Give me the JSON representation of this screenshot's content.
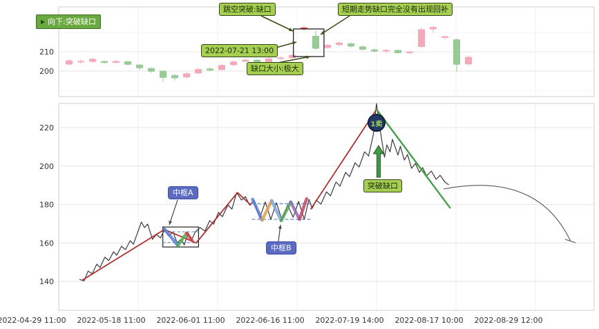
{
  "top_panel": {
    "yticks": [
      "210",
      "200"
    ],
    "annotations": {
      "direction_tag": "向下:突破缺口",
      "gap_breakout": "跳空突破:缺口",
      "gap_not_filled": "短期走势缺口完全没有出现回补",
      "gap_datetime": "2022-07-21 13:00",
      "gap_size": "缺口大小:极大"
    }
  },
  "bottom_panel": {
    "yticks": [
      "220",
      "200",
      "180",
      "160",
      "140"
    ],
    "annotations": {
      "pivot_a": "中枢A",
      "pivot_b": "中枢B",
      "breakout_gap": "突破缺口",
      "sell_signal": "1卖"
    }
  },
  "colors": {
    "candle_up": "#f4a9ba",
    "candle_down": "#96cb96",
    "candle_highlight": "#e53935",
    "segment_up": "#b03030",
    "segment_down": "#44a048",
    "note_green": "#a6cf52",
    "pivot_blue": "#5c6bc0",
    "badge_navy": "#223a63"
  },
  "chart_data": [
    {
      "type": "candlestick",
      "panel": "top",
      "yticks": [
        210,
        200
      ],
      "ylim": [
        192,
        226
      ],
      "up_color": "#f4a9ba",
      "down_color": "#96cb96",
      "candles": [
        [
          203.4,
          206.2,
          202.8,
          205.5,
          1
        ],
        [
          204.5,
          206.0,
          203.7,
          205.2,
          1
        ],
        [
          204.8,
          207.0,
          204.3,
          206.3,
          1
        ],
        [
          205.1,
          205.6,
          203.7,
          204.3,
          0
        ],
        [
          204.3,
          205.8,
          203.8,
          205.2,
          1
        ],
        [
          205.0,
          205.4,
          202.8,
          203.3,
          0
        ],
        [
          203.3,
          203.7,
          200.8,
          201.5,
          0
        ],
        [
          201.5,
          201.9,
          199.0,
          199.7,
          0
        ],
        [
          200.1,
          200.3,
          194.4,
          196.5,
          0
        ],
        [
          197.9,
          198.5,
          195.1,
          196.3,
          0
        ],
        [
          196.7,
          199.4,
          196.1,
          198.8,
          1
        ],
        [
          198.8,
          201.7,
          198.3,
          201.0,
          1
        ],
        [
          201.3,
          201.9,
          199.7,
          200.3,
          0
        ],
        [
          200.6,
          203.8,
          200.1,
          203.1,
          1
        ],
        [
          203.1,
          205.6,
          202.6,
          204.9,
          1
        ],
        [
          204.9,
          206.5,
          204.4,
          205.8,
          1
        ],
        [
          205.8,
          206.2,
          204.2,
          204.7,
          0
        ],
        [
          204.7,
          207.1,
          204.3,
          206.5,
          1
        ],
        [
          206.3,
          207.6,
          205.8,
          207.0,
          1
        ],
        [
          206.7,
          208.8,
          205.3,
          208.3,
          1
        ],
        [
          221.8,
          223.0,
          221.2,
          222.5,
          1,
          "#e53935"
        ],
        [
          218.2,
          221.0,
          210.9,
          211.6,
          0
        ],
        [
          212.0,
          214.2,
          211.4,
          213.5,
          1
        ],
        [
          213.5,
          215.4,
          212.9,
          214.7,
          1
        ],
        [
          214.3,
          214.9,
          212.1,
          212.7,
          0
        ],
        [
          212.7,
          213.2,
          210.5,
          211.1,
          0
        ],
        [
          211.1,
          211.7,
          209.6,
          210.2,
          0
        ],
        [
          210.2,
          211.3,
          209.2,
          210.9,
          1
        ],
        [
          210.9,
          211.1,
          208.8,
          209.3,
          0
        ],
        [
          209.3,
          210.5,
          208.6,
          210.0,
          1
        ],
        [
          212.5,
          222.6,
          212.0,
          221.6,
          1
        ],
        [
          221.6,
          223.4,
          219.8,
          222.8,
          1
        ],
        [
          217.2,
          218.4,
          216.5,
          218.0,
          1
        ],
        [
          216.4,
          216.9,
          199.4,
          203.3,
          0
        ],
        [
          203.5,
          208.0,
          202.8,
          207.3,
          1
        ]
      ],
      "gap_box": {
        "from": 19.1,
        "to": 21.7,
        "top": 221.8,
        "bottom": 207.5
      },
      "arrows": [
        [
          [
            378,
            23
          ],
          [
            424,
            45
          ]
        ],
        [
          [
            506,
            23
          ],
          [
            464,
            50
          ]
        ],
        [
          [
            389,
            72
          ],
          [
            429,
            61
          ]
        ],
        [
          [
            402,
            91
          ],
          [
            449,
            82
          ]
        ]
      ]
    },
    {
      "type": "line",
      "panel": "bottom",
      "yticks": [
        220,
        200,
        180,
        160,
        140
      ],
      "ylim": [
        132,
        236
      ],
      "xtick_labels": [
        "2022-04-29 11:00",
        "2022-05-18 11:00",
        "2022-06-01 11:00",
        "2022-06-16 11:00",
        "2022-07-19 14:00",
        "2022-08-17 10:00",
        "2022-08-29 12:00"
      ],
      "price_line": [
        [
          0.26,
          141.0
        ],
        [
          0.32,
          140.3
        ],
        [
          0.37,
          145.4
        ],
        [
          0.42,
          143.9
        ],
        [
          0.48,
          149.0
        ],
        [
          0.52,
          147.2
        ],
        [
          0.58,
          152.6
        ],
        [
          0.63,
          150.8
        ],
        [
          0.69,
          155.4
        ],
        [
          0.73,
          153.6
        ],
        [
          0.79,
          158.3
        ],
        [
          0.84,
          156.5
        ],
        [
          0.9,
          161.2
        ],
        [
          0.94,
          159.4
        ],
        [
          1.0,
          166.2
        ],
        [
          1.04,
          170.9
        ],
        [
          1.08,
          168.0
        ],
        [
          1.12,
          169.8
        ],
        [
          1.18,
          161.9
        ],
        [
          1.23,
          164.4
        ],
        [
          1.28,
          162.6
        ],
        [
          1.33,
          166.9
        ],
        [
          1.38,
          163.7
        ],
        [
          1.44,
          165.5
        ],
        [
          1.49,
          160.1
        ],
        [
          1.54,
          161.9
        ],
        [
          1.58,
          159.0
        ],
        [
          1.63,
          165.1
        ],
        [
          1.67,
          161.5
        ],
        [
          1.72,
          165.8
        ],
        [
          1.78,
          168.0
        ],
        [
          1.84,
          166.2
        ],
        [
          1.9,
          171.6
        ],
        [
          1.95,
          169.8
        ],
        [
          2.01,
          175.9
        ],
        [
          2.06,
          173.7
        ],
        [
          2.13,
          179.8
        ],
        [
          2.18,
          177.6
        ],
        [
          2.24,
          186.2
        ],
        [
          2.3,
          182.3
        ],
        [
          2.35,
          184.1
        ],
        [
          2.4,
          179.8
        ],
        [
          2.46,
          182.0
        ],
        [
          2.53,
          173.0
        ],
        [
          2.6,
          181.3
        ],
        [
          2.67,
          172.3
        ],
        [
          2.74,
          180.9
        ],
        [
          2.81,
          171.9
        ],
        [
          2.88,
          179.8
        ],
        [
          2.95,
          173.4
        ],
        [
          3.02,
          181.6
        ],
        [
          3.09,
          172.3
        ],
        [
          3.15,
          182.7
        ],
        [
          3.19,
          178.0
        ],
        [
          3.24,
          182.3
        ],
        [
          3.3,
          180.2
        ],
        [
          3.37,
          186.6
        ],
        [
          3.42,
          184.5
        ],
        [
          3.49,
          191.7
        ],
        [
          3.54,
          189.5
        ],
        [
          3.61,
          196.7
        ],
        [
          3.66,
          194.5
        ],
        [
          3.73,
          201.7
        ],
        [
          3.78,
          199.5
        ],
        [
          3.85,
          207.4
        ],
        [
          3.9,
          205.2
        ],
        [
          3.96,
          216.4
        ],
        [
          3.98,
          225.4
        ],
        [
          4.0,
          232.5
        ],
        [
          4.03,
          222.6
        ],
        [
          4.06,
          215.0
        ],
        [
          4.1,
          204.6
        ],
        [
          4.13,
          211.0
        ],
        [
          4.17,
          207.4
        ],
        [
          4.2,
          213.9
        ],
        [
          4.24,
          209.2
        ],
        [
          4.27,
          205.7
        ],
        [
          4.3,
          210.3
        ],
        [
          4.35,
          203.1
        ],
        [
          4.39,
          206.0
        ],
        [
          4.44,
          198.8
        ],
        [
          4.49,
          201.4
        ],
        [
          4.54,
          196.7
        ],
        [
          4.58,
          199.2
        ],
        [
          4.63,
          194.9
        ],
        [
          4.69,
          197.4
        ],
        [
          4.75,
          193.1
        ],
        [
          4.8,
          195.2
        ],
        [
          4.86,
          191.7
        ],
        [
          4.91,
          190.2
        ]
      ],
      "up_segments": [
        [
          [
            0.29,
            140.5
          ],
          [
            1.33,
            167.0
          ]
        ],
        [
          [
            1.33,
            167.0
          ],
          [
            1.73,
            160.0
          ]
        ],
        [
          [
            1.73,
            160.0
          ],
          [
            2.25,
            186.2
          ]
        ],
        [
          [
            2.25,
            186.2
          ],
          [
            2.42,
            179.6
          ]
        ],
        [
          [
            3.17,
            177.5
          ],
          [
            4.0,
            229.5
          ]
        ]
      ],
      "down_segment": [
        [
          4.0,
          229.5
        ],
        [
          4.93,
          178.0
        ]
      ],
      "segment_up_color": "#b03030",
      "segment_down_color": "#44a048",
      "strokes": [
        {
          "color": "#5b7fd4",
          "pts": [
            [
              1.33,
              167.3
            ],
            [
              1.5,
              158.7
            ]
          ]
        },
        {
          "color": "#4caf50",
          "pts": [
            [
              1.5,
              158.7
            ],
            [
              1.61,
              165.1
            ]
          ]
        },
        {
          "color": "#d04545",
          "pts": [
            [
              1.61,
              165.1
            ],
            [
              1.68,
              161.2
            ]
          ]
        },
        {
          "color": "#5b7fd4",
          "pts": [
            [
              2.44,
              182.7
            ],
            [
              2.56,
              171.9
            ]
          ]
        },
        {
          "color": "#e2a14f",
          "pts": [
            [
              2.56,
              171.9
            ],
            [
              2.68,
              182.0
            ]
          ]
        },
        {
          "color": "#7da7d9",
          "pts": [
            [
              2.68,
              182.0
            ],
            [
              2.8,
              171.6
            ]
          ]
        },
        {
          "color": "#56a556",
          "pts": [
            [
              2.8,
              171.6
            ],
            [
              2.92,
              181.3
            ]
          ]
        },
        {
          "color": "#8e6bb8",
          "pts": [
            [
              2.92,
              181.3
            ],
            [
              3.03,
              172.3
            ]
          ]
        },
        {
          "color": "#c2456a",
          "pts": [
            [
              3.03,
              172.3
            ],
            [
              3.12,
              183.0
            ]
          ]
        }
      ],
      "pivot_a": {
        "t0": 1.31,
        "t1": 1.76,
        "top": 168.3,
        "bottom": 157.9,
        "dash": [
          165.8,
          160.2
        ]
      },
      "pivot_b": {
        "t0": 2.43,
        "t1": 3.19,
        "dash": [
          180.5,
          172.3
        ]
      },
      "pointer_lines": [
        [
          [
            257,
            290
          ],
          [
            245,
            326
          ]
        ],
        [
          [
            403,
            350
          ],
          [
            406,
            326
          ]
        ]
      ],
      "breakout_arrow": {
        "x": 548,
        "y_from": 257,
        "y_to": 211
      },
      "arc": {
        "from": [
          642,
          274
        ],
        "ctrl": [
          778,
          248
        ],
        "to": [
          826,
          350
        ],
        "tick": [
          [
            818,
            347
          ],
          [
            833,
            352
          ]
        ]
      }
    }
  ]
}
